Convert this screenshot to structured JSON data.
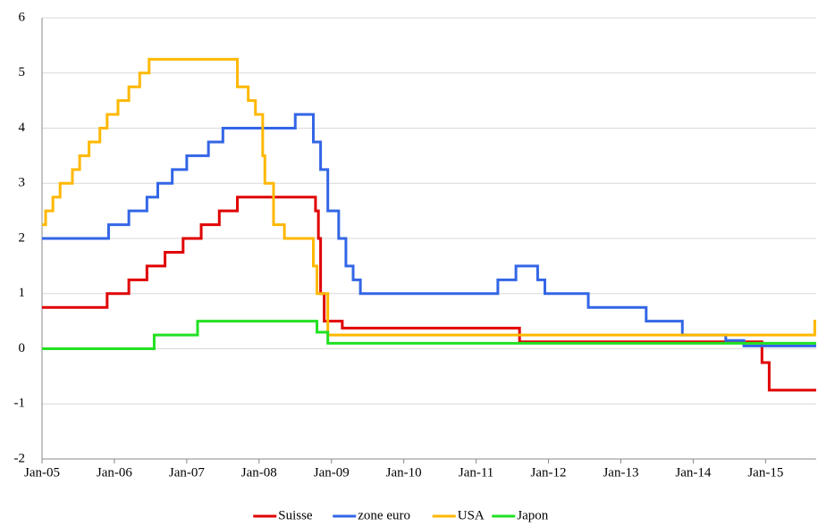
{
  "chart_data": {
    "type": "line",
    "step": "post",
    "grid": true,
    "legend": "bottom",
    "xlim": [
      2005,
      2015.7
    ],
    "xticks": [
      {
        "value": 2005,
        "label": "Jan-05"
      },
      {
        "value": 2006,
        "label": "Jan-06"
      },
      {
        "value": 2007,
        "label": "Jan-07"
      },
      {
        "value": 2008,
        "label": "Jan-08"
      },
      {
        "value": 2009,
        "label": "Jan-09"
      },
      {
        "value": 2010,
        "label": "Jan-10"
      },
      {
        "value": 2011,
        "label": "Jan-11"
      },
      {
        "value": 2012,
        "label": "Jan-12"
      },
      {
        "value": 2013,
        "label": "Jan-13"
      },
      {
        "value": 2014,
        "label": "Jan-14"
      },
      {
        "value": 2015,
        "label": "Jan-15"
      }
    ],
    "ylim": [
      -2,
      6
    ],
    "yticks": [
      -2,
      -1,
      0,
      1,
      2,
      3,
      4,
      5,
      6
    ],
    "series": [
      {
        "name": "Suisse",
        "color": "#e00000",
        "x": [
          2005,
          2005.9,
          2006.2,
          2006.45,
          2006.7,
          2006.95,
          2007.2,
          2007.45,
          2007.7,
          2008.78,
          2008.82,
          2008.85,
          2008.9,
          2009.15,
          2011.6,
          2014.95,
          2015.05,
          2015.7
        ],
        "values": [
          0.75,
          1.0,
          1.25,
          1.5,
          1.75,
          2.0,
          2.25,
          2.5,
          2.75,
          2.5,
          2.0,
          1.0,
          0.5,
          0.375,
          0.125,
          -0.25,
          -0.75,
          -0.75
        ]
      },
      {
        "name": "zone euro",
        "color": "#3366e6",
        "x": [
          2005,
          2005.92,
          2006.2,
          2006.45,
          2006.6,
          2006.8,
          2007.0,
          2007.3,
          2007.5,
          2008.5,
          2008.75,
          2008.85,
          2008.95,
          2009.1,
          2009.2,
          2009.3,
          2009.4,
          2011.3,
          2011.55,
          2011.85,
          2011.95,
          2012.55,
          2013.35,
          2013.85,
          2014.45,
          2014.7,
          2015.7
        ],
        "values": [
          2.0,
          2.25,
          2.5,
          2.75,
          3.0,
          3.25,
          3.5,
          3.75,
          4.0,
          4.25,
          3.75,
          3.25,
          2.5,
          2.0,
          1.5,
          1.25,
          1.0,
          1.25,
          1.5,
          1.25,
          1.0,
          0.75,
          0.5,
          0.25,
          0.15,
          0.05,
          0.05
        ]
      },
      {
        "name": "USA",
        "color": "#ffb800",
        "x": [
          2005,
          2005.05,
          2005.15,
          2005.25,
          2005.42,
          2005.52,
          2005.65,
          2005.8,
          2005.9,
          2006.05,
          2006.2,
          2006.35,
          2006.48,
          2007.7,
          2007.85,
          2007.95,
          2008.05,
          2008.08,
          2008.2,
          2008.35,
          2008.75,
          2008.8,
          2008.95,
          2015.68,
          2015.7
        ],
        "values": [
          2.25,
          2.5,
          2.75,
          3.0,
          3.25,
          3.5,
          3.75,
          4.0,
          4.25,
          4.5,
          4.75,
          5.0,
          5.25,
          4.75,
          4.5,
          4.25,
          3.5,
          3.0,
          2.25,
          2.0,
          1.5,
          1.0,
          0.25,
          0.5,
          0.5
        ]
      },
      {
        "name": "Japon",
        "color": "#22e022",
        "x": [
          2005,
          2006.55,
          2007.15,
          2008.8,
          2008.95,
          2015.7
        ],
        "values": [
          0,
          0.25,
          0.5,
          0.3,
          0.1,
          0.1
        ]
      }
    ]
  }
}
